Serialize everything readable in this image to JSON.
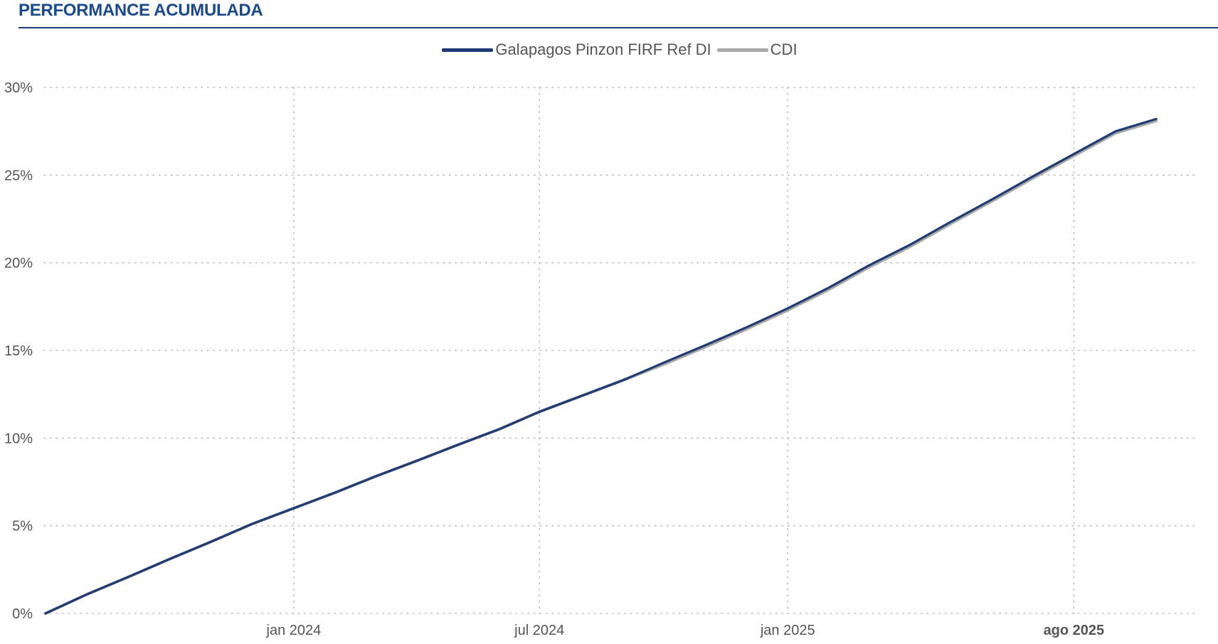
{
  "header": {
    "title": "PERFORMANCE ACUMULADA"
  },
  "colors": {
    "title": "#1b4a8c",
    "rule": "#1b3d7a",
    "fund": "#1f3b73",
    "cdi": "#a9a9a9",
    "grid": "#bdbdbd",
    "text": "#555555"
  },
  "chart_data": {
    "type": "line",
    "title": "",
    "xlabel": "",
    "ylabel": "",
    "legend_position": "top-center",
    "grid": true,
    "y_tick_labels": [
      "0%",
      "5%",
      "10%",
      "15%",
      "20%",
      "25%",
      "30%"
    ],
    "ylim": [
      0,
      30
    ],
    "x_tick_labels": [
      "jan 2024",
      "jul 2024",
      "jan 2025",
      "ago 2025"
    ],
    "x_tick_dates": [
      "2024-01-01",
      "2024-07-01",
      "2025-01-01",
      "2025-08-01"
    ],
    "xlim": [
      "2023-06-30",
      "2025-10-31"
    ],
    "x": [
      "2023-07-01",
      "2023-08-01",
      "2023-09-01",
      "2023-10-01",
      "2023-11-01",
      "2023-12-01",
      "2024-01-01",
      "2024-02-01",
      "2024-03-01",
      "2024-04-01",
      "2024-05-01",
      "2024-06-01",
      "2024-07-01",
      "2024-08-01",
      "2024-09-01",
      "2024-10-01",
      "2024-11-01",
      "2024-12-01",
      "2025-01-01",
      "2025-02-01",
      "2025-03-01",
      "2025-04-01",
      "2025-05-01",
      "2025-06-01",
      "2025-07-01",
      "2025-08-01",
      "2025-09-01",
      "2025-10-01"
    ],
    "series": [
      {
        "name": "Galapagos Pinzon FIRF Ref DI",
        "values": [
          0.0,
          1.1,
          2.1,
          3.1,
          4.1,
          5.1,
          6.0,
          6.9,
          7.8,
          8.7,
          9.6,
          10.5,
          11.5,
          12.4,
          13.3,
          14.3,
          15.3,
          16.3,
          17.4,
          18.6,
          19.8,
          21.0,
          22.3,
          23.6,
          24.9,
          26.2,
          27.5,
          28.2
        ]
      },
      {
        "name": "CDI",
        "values": [
          0.0,
          1.1,
          2.1,
          3.1,
          4.1,
          5.1,
          6.0,
          6.9,
          7.8,
          8.7,
          9.6,
          10.5,
          11.5,
          12.4,
          13.3,
          14.2,
          15.2,
          16.2,
          17.3,
          18.5,
          19.7,
          20.9,
          22.2,
          23.5,
          24.8,
          26.1,
          27.4,
          28.1
        ]
      }
    ]
  }
}
